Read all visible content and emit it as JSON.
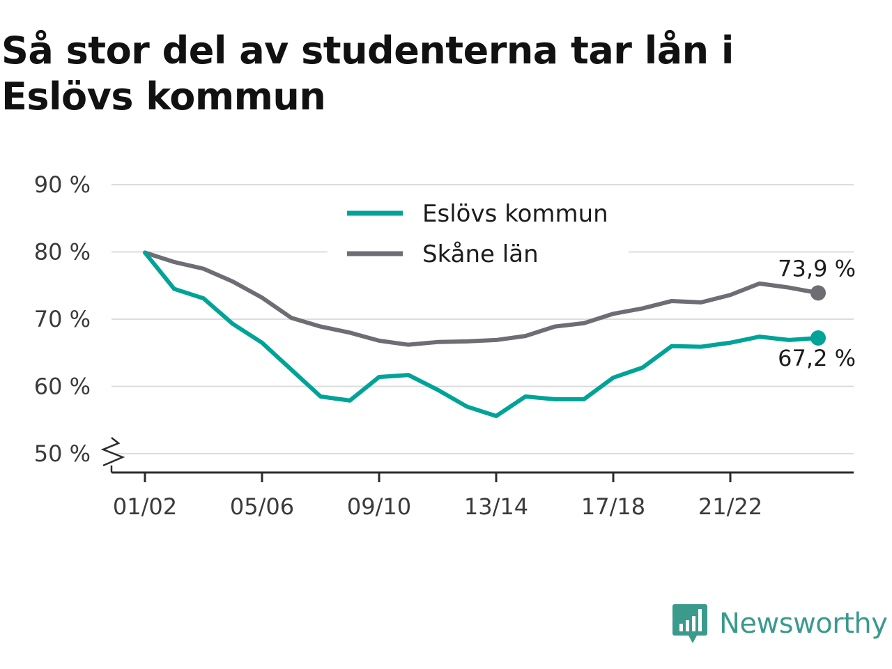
{
  "title": "Så stor del av studenterna tar lån i Eslövs kommun",
  "brand": {
    "name": "Newsworthy",
    "icon": "newsworthy-logo-icon",
    "color": "#3a9a8c"
  },
  "chart_data": {
    "type": "line",
    "title": "Så stor del av studenterna tar lån i Eslövs kommun",
    "x": [
      "01/02",
      "02/03",
      "03/04",
      "04/05",
      "05/06",
      "06/07",
      "07/08",
      "08/09",
      "09/10",
      "10/11",
      "11/12",
      "12/13",
      "13/14",
      "14/15",
      "15/16",
      "16/17",
      "17/18",
      "18/19",
      "19/20",
      "20/21",
      "21/22",
      "22/23",
      "23/24",
      "24/25"
    ],
    "x_tick_labels": [
      "01/02",
      "05/06",
      "09/10",
      "13/14",
      "17/18",
      "21/22"
    ],
    "y_tick_labels": [
      "50 %",
      "60 %",
      "70 %",
      "80 %",
      "90 %"
    ],
    "y_ticks": [
      50,
      60,
      70,
      80,
      90
    ],
    "ylim": [
      47,
      90
    ],
    "y_axis_break": true,
    "grid": true,
    "legend_position": "top-center",
    "series": [
      {
        "name": "Eslövs kommun",
        "color": "#00a398",
        "values": [
          79.9,
          74.5,
          73.1,
          69.3,
          66.5,
          62.5,
          58.5,
          57.9,
          61.4,
          61.7,
          59.5,
          57.0,
          55.6,
          58.5,
          58.1,
          58.1,
          61.3,
          62.8,
          66.0,
          65.9,
          66.5,
          67.4,
          66.9,
          67.2
        ],
        "end_label": "67,2 %"
      },
      {
        "name": "Skåne län",
        "color": "#6e6d74",
        "values": [
          79.9,
          78.5,
          77.5,
          75.6,
          73.2,
          70.2,
          68.9,
          68.0,
          66.8,
          66.2,
          66.6,
          66.7,
          66.9,
          67.5,
          68.9,
          69.4,
          70.8,
          71.6,
          72.7,
          72.5,
          73.6,
          75.3,
          74.7,
          73.9
        ],
        "end_label": "73,9 %"
      }
    ]
  }
}
